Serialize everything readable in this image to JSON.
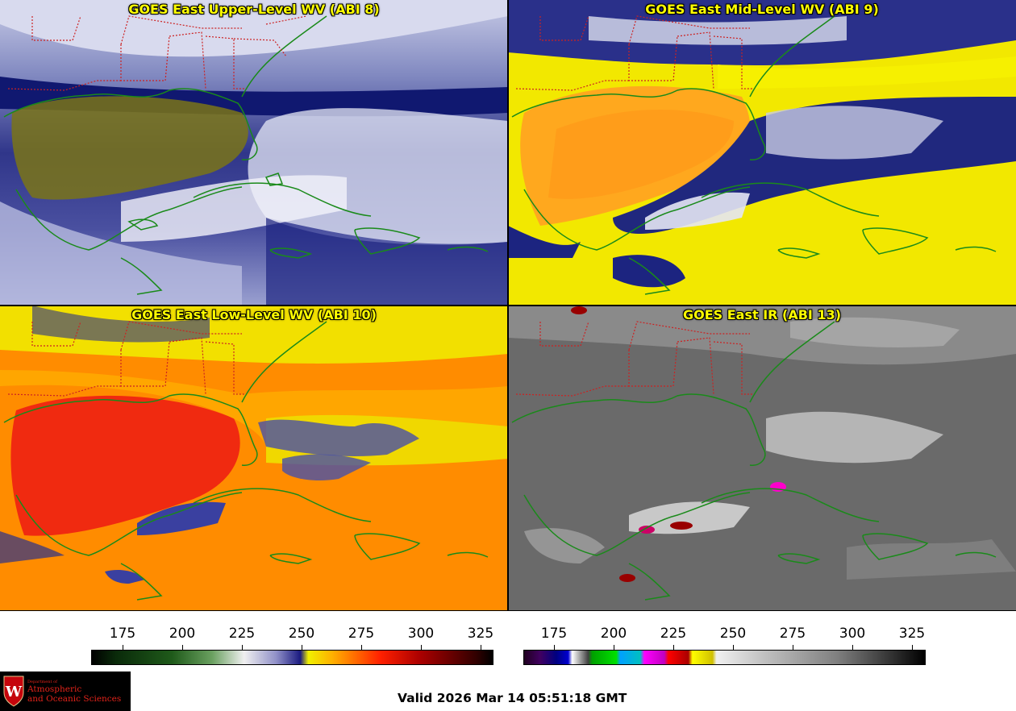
{
  "panels": [
    {
      "title": "GOES East Upper-Level WV (ABI 8)",
      "scheme": "wv8"
    },
    {
      "title": "GOES East Mid-Level WV (ABI 9)",
      "scheme": "wv9"
    },
    {
      "title": "GOES East Low-Level WV (ABI 10)",
      "scheme": "wv10"
    },
    {
      "title": "GOES East IR (ABI 13)",
      "scheme": "ir"
    }
  ],
  "colorbars": [
    {
      "ticks": [
        "175",
        "200",
        "225",
        "250",
        "275",
        "300",
        "325"
      ]
    },
    {
      "ticks": [
        "175",
        "200",
        "225",
        "250",
        "275",
        "300",
        "325"
      ]
    }
  ],
  "logo": {
    "dept": "Department of",
    "line1": "Atmospheric",
    "line2": "and Oceanic Sciences",
    "initial": "W"
  },
  "valid_time": "Valid 2026 Mar 14 05:51:18 GMT",
  "colors": {
    "title_text": "#ffff00",
    "coastline": "#1a8a1a",
    "state_borders": "#cc2222",
    "wv_dry": "#ffff00",
    "wv_moist": "#000080",
    "logo_red": "#e2231a"
  }
}
